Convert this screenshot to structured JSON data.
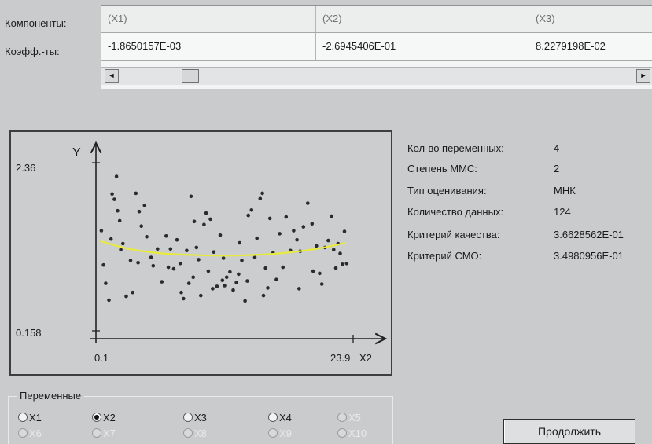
{
  "grid": {
    "row_labels": {
      "components": "Компоненты:",
      "coefficients": "Коэфф.-ты:"
    },
    "headers": [
      "(X1)",
      "(X2)",
      "(X3)"
    ],
    "values": [
      "-1.8650157E-03",
      "-2.6945406E-01",
      "8.2279198E-02"
    ],
    "scroll_left": "◄",
    "scroll_right": "►"
  },
  "chart_data": {
    "type": "scatter",
    "y_axis_label": "Y",
    "x_axis_label": "X2",
    "y_tick_labels": [
      "2.36",
      "0.158"
    ],
    "x_tick_labels": [
      "0.1",
      "23.9"
    ],
    "xlim": [
      0.1,
      23.9
    ],
    "ylim": [
      0.158,
      2.36
    ],
    "points": [
      [
        0.6,
        1.47
      ],
      [
        0.8,
        1.02
      ],
      [
        1.0,
        0.78
      ],
      [
        1.3,
        0.56
      ],
      [
        1.5,
        1.36
      ],
      [
        1.6,
        1.95
      ],
      [
        1.8,
        1.88
      ],
      [
        2.0,
        2.18
      ],
      [
        2.1,
        1.73
      ],
      [
        2.3,
        1.6
      ],
      [
        2.6,
        1.3
      ],
      [
        2.9,
        0.61
      ],
      [
        3.3,
        1.08
      ],
      [
        3.5,
        0.66
      ],
      [
        3.8,
        1.96
      ],
      [
        4.1,
        1.72
      ],
      [
        4.3,
        1.53
      ],
      [
        4.6,
        1.8
      ],
      [
        4.8,
        1.39
      ],
      [
        5.2,
        1.12
      ],
      [
        5.4,
        1.01
      ],
      [
        5.8,
        1.23
      ],
      [
        6.2,
        0.8
      ],
      [
        6.6,
        1.4
      ],
      [
        7.0,
        1.23
      ],
      [
        7.3,
        0.97
      ],
      [
        7.6,
        1.35
      ],
      [
        7.9,
        1.04
      ],
      [
        8.2,
        0.58
      ],
      [
        8.5,
        1.21
      ],
      [
        8.7,
        0.78
      ],
      [
        8.9,
        1.92
      ],
      [
        9.2,
        1.59
      ],
      [
        9.4,
        1.25
      ],
      [
        9.6,
        1.09
      ],
      [
        9.8,
        0.62
      ],
      [
        10.1,
        1.55
      ],
      [
        10.3,
        1.7
      ],
      [
        10.5,
        0.94
      ],
      [
        10.7,
        1.62
      ],
      [
        11.0,
        1.19
      ],
      [
        11.3,
        0.74
      ],
      [
        11.6,
        1.41
      ],
      [
        11.9,
        1.11
      ],
      [
        12.2,
        0.86
      ],
      [
        12.5,
        0.93
      ],
      [
        12.8,
        0.69
      ],
      [
        13.1,
        0.79
      ],
      [
        13.4,
        1.31
      ],
      [
        13.6,
        1.08
      ],
      [
        13.9,
        0.55
      ],
      [
        14.2,
        1.67
      ],
      [
        14.5,
        1.74
      ],
      [
        14.8,
        1.12
      ],
      [
        15.0,
        1.37
      ],
      [
        15.3,
        1.89
      ],
      [
        15.5,
        1.96
      ],
      [
        15.8,
        0.98
      ],
      [
        16.2,
        1.63
      ],
      [
        16.5,
        1.18
      ],
      [
        16.8,
        0.83
      ],
      [
        17.1,
        1.43
      ],
      [
        17.4,
        0.99
      ],
      [
        17.7,
        1.65
      ],
      [
        18.1,
        1.21
      ],
      [
        18.4,
        1.47
      ],
      [
        18.7,
        1.35
      ],
      [
        19.0,
        1.2
      ],
      [
        19.3,
        1.52
      ],
      [
        19.7,
        1.83
      ],
      [
        20.1,
        1.56
      ],
      [
        20.5,
        1.27
      ],
      [
        20.8,
        0.91
      ],
      [
        21.0,
        0.77
      ],
      [
        21.3,
        1.25
      ],
      [
        21.6,
        1.34
      ],
      [
        21.9,
        1.66
      ],
      [
        22.1,
        1.22
      ],
      [
        22.3,
        0.98
      ],
      [
        22.5,
        1.3
      ],
      [
        22.7,
        1.17
      ],
      [
        22.9,
        1.03
      ],
      [
        23.1,
        1.46
      ],
      [
        23.3,
        1.04
      ],
      [
        2.4,
        1.22
      ],
      [
        4.0,
        1.05
      ],
      [
        6.8,
        0.99
      ],
      [
        9.1,
        0.86
      ],
      [
        11.8,
        0.82
      ],
      [
        14.1,
        0.81
      ],
      [
        16.0,
        0.72
      ],
      [
        18.9,
        0.71
      ],
      [
        20.2,
        0.94
      ],
      [
        12.0,
        0.75
      ],
      [
        13.3,
        0.9
      ],
      [
        10.9,
        0.71
      ],
      [
        8.0,
        0.66
      ],
      [
        15.6,
        0.62
      ]
    ],
    "curve": [
      [
        0.6,
        1.33
      ],
      [
        3,
        1.23
      ],
      [
        6,
        1.17
      ],
      [
        9,
        1.15
      ],
      [
        12,
        1.14
      ],
      [
        15,
        1.15
      ],
      [
        18,
        1.18
      ],
      [
        21,
        1.24
      ],
      [
        23.2,
        1.31
      ]
    ],
    "curve_color": "#e8ea3c",
    "point_color": "#2b2b2b"
  },
  "info": [
    {
      "label": "Кол-во переменных:",
      "value": "4"
    },
    {
      "label": "Степень ММС:",
      "value": "2"
    },
    {
      "label": "Тип оценивания:",
      "value": "МНК"
    },
    {
      "label": "Количество данных:",
      "value": "124"
    },
    {
      "label": "Критерий качества:",
      "value": "3.6628562E-01"
    },
    {
      "label": "Критерий СМО:",
      "value": "3.4980956E-01"
    }
  ],
  "variables": {
    "title": "Переменные",
    "options": [
      {
        "label": "X1",
        "checked": false,
        "enabled": true
      },
      {
        "label": "X2",
        "checked": true,
        "enabled": true
      },
      {
        "label": "X3",
        "checked": false,
        "enabled": true
      },
      {
        "label": "X4",
        "checked": false,
        "enabled": true
      },
      {
        "label": "X5",
        "checked": false,
        "enabled": false
      },
      {
        "label": "X6",
        "checked": false,
        "enabled": false
      },
      {
        "label": "X7",
        "checked": false,
        "enabled": false
      },
      {
        "label": "X8",
        "checked": false,
        "enabled": false
      },
      {
        "label": "X9",
        "checked": false,
        "enabled": false
      },
      {
        "label": "X10",
        "checked": false,
        "enabled": false
      }
    ]
  },
  "continue_button": "Продолжить"
}
